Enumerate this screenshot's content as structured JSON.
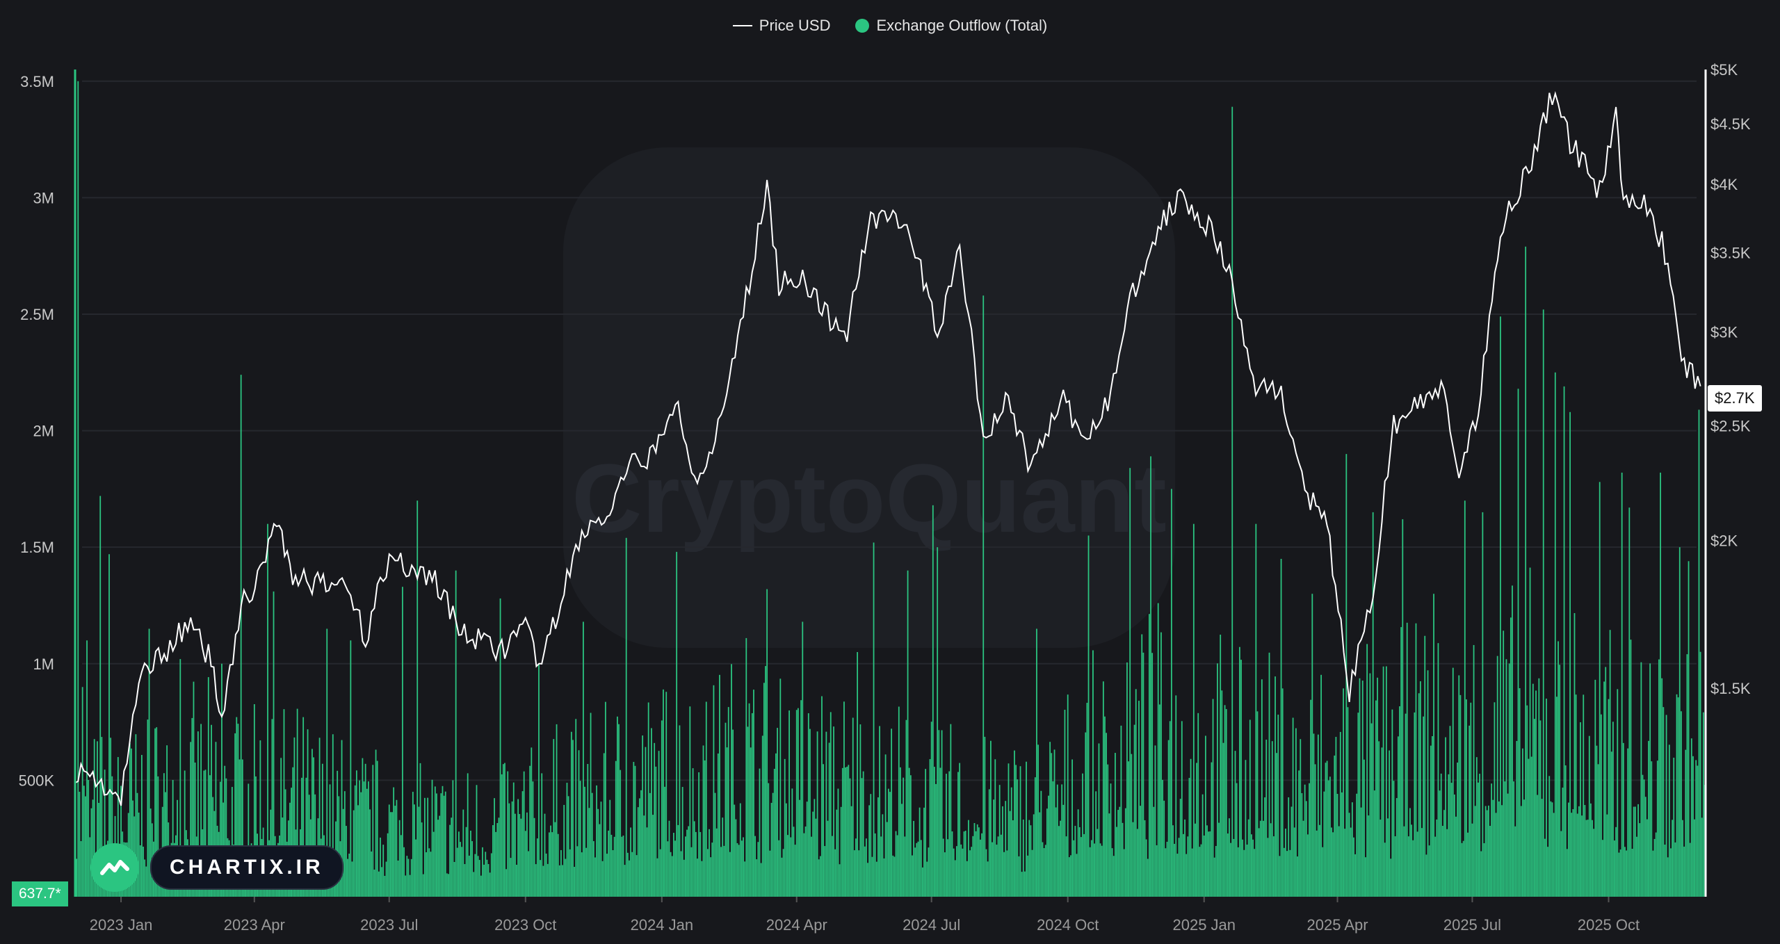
{
  "legend": {
    "price_label": "Price USD",
    "outflow_label": "Exchange Outflow (Total)"
  },
  "colors": {
    "background": "#17181c",
    "outflow": "#2bc581",
    "price": "#ffffff",
    "grid": "#26282e",
    "axis_text": "#c8c8c8",
    "x_axis_text": "#9a9a9a"
  },
  "price_tag": "$2.7K",
  "min_tag": "637.7*",
  "watermark": "CryptoQuant",
  "brand": {
    "name": "CHARTIX.IR",
    "icon": "chartix-logo-icon"
  },
  "chart_data": {
    "type": "bar-line",
    "x_range": [
      "2022-12-01",
      "2025-12-05"
    ],
    "x_ticks": [
      "2023 Jan",
      "2023 Apr",
      "2023 Jul",
      "2023 Oct",
      "2024 Jan",
      "2024 Apr",
      "2024 Jul",
      "2024 Oct",
      "2025 Jan",
      "2025 Apr",
      "2025 Jul",
      "2025 Oct"
    ],
    "x_tick_dates": [
      "2023-01-01",
      "2023-04-01",
      "2023-07-01",
      "2023-10-01",
      "2024-01-01",
      "2024-04-01",
      "2024-07-01",
      "2024-10-01",
      "2025-01-01",
      "2025-04-01",
      "2025-07-01",
      "2025-10-01"
    ],
    "y_left": {
      "label": "",
      "range": [
        0,
        3550000
      ],
      "ticks": [
        500000,
        1000000,
        1500000,
        2000000,
        2500000,
        3000000,
        3500000
      ],
      "tick_labels": [
        "500K",
        "1M",
        "1.5M",
        "2M",
        "2.5M",
        "3M",
        "3.5M"
      ]
    },
    "y_right": {
      "label": "",
      "scale": "log",
      "range": [
        1000,
        5000
      ],
      "ticks": [
        1500,
        2000,
        2500,
        3000,
        3500,
        4000,
        4500,
        5000
      ],
      "tick_labels": [
        "$1.5K",
        "$2K",
        "$2.5K",
        "$3K",
        "$3.5K",
        "$4K",
        "$4.5K",
        "$5K"
      ]
    },
    "series": [
      {
        "name": "Price USD",
        "type": "line",
        "points": [
          [
            "2022-12-01",
            1280
          ],
          [
            "2022-12-15",
            1260
          ],
          [
            "2023-01-01",
            1200
          ],
          [
            "2023-01-15",
            1550
          ],
          [
            "2023-02-01",
            1620
          ],
          [
            "2023-02-15",
            1700
          ],
          [
            "2023-03-01",
            1600
          ],
          [
            "2023-03-10",
            1430
          ],
          [
            "2023-03-25",
            1780
          ],
          [
            "2023-04-05",
            1860
          ],
          [
            "2023-04-16",
            2100
          ],
          [
            "2023-04-25",
            1880
          ],
          [
            "2023-05-10",
            1840
          ],
          [
            "2023-05-25",
            1820
          ],
          [
            "2023-06-01",
            1870
          ],
          [
            "2023-06-15",
            1640
          ],
          [
            "2023-06-25",
            1880
          ],
          [
            "2023-07-05",
            1930
          ],
          [
            "2023-07-20",
            1880
          ],
          [
            "2023-08-01",
            1860
          ],
          [
            "2023-08-17",
            1680
          ],
          [
            "2023-09-01",
            1640
          ],
          [
            "2023-09-15",
            1620
          ],
          [
            "2023-10-01",
            1680
          ],
          [
            "2023-10-12",
            1560
          ],
          [
            "2023-10-25",
            1780
          ],
          [
            "2023-11-10",
            2050
          ],
          [
            "2023-11-25",
            2080
          ],
          [
            "2023-12-10",
            2300
          ],
          [
            "2023-12-28",
            2380
          ],
          [
            "2024-01-12",
            2600
          ],
          [
            "2024-01-23",
            2250
          ],
          [
            "2024-02-10",
            2500
          ],
          [
            "2024-02-25",
            3100
          ],
          [
            "2024-03-12",
            3950
          ],
          [
            "2024-03-20",
            3300
          ],
          [
            "2024-04-05",
            3350
          ],
          [
            "2024-04-20",
            3100
          ],
          [
            "2024-05-05",
            3000
          ],
          [
            "2024-05-21",
            3750
          ],
          [
            "2024-06-05",
            3800
          ],
          [
            "2024-06-20",
            3500
          ],
          [
            "2024-07-05",
            3000
          ],
          [
            "2024-07-20",
            3500
          ],
          [
            "2024-08-05",
            2400
          ],
          [
            "2024-08-20",
            2650
          ],
          [
            "2024-09-06",
            2300
          ],
          [
            "2024-09-28",
            2650
          ],
          [
            "2024-10-10",
            2400
          ],
          [
            "2024-10-30",
            2650
          ],
          [
            "2024-11-12",
            3200
          ],
          [
            "2024-12-01",
            3650
          ],
          [
            "2024-12-16",
            3950
          ],
          [
            "2025-01-06",
            3650
          ],
          [
            "2025-01-20",
            3300
          ],
          [
            "2025-02-03",
            2700
          ],
          [
            "2025-02-20",
            2700
          ],
          [
            "2025-03-10",
            2200
          ],
          [
            "2025-03-25",
            2050
          ],
          [
            "2025-04-09",
            1480
          ],
          [
            "2025-04-25",
            1800
          ],
          [
            "2025-05-09",
            2500
          ],
          [
            "2025-05-25",
            2600
          ],
          [
            "2025-06-10",
            2700
          ],
          [
            "2025-06-22",
            2250
          ],
          [
            "2025-07-05",
            2550
          ],
          [
            "2025-07-20",
            3650
          ],
          [
            "2025-08-10",
            4200
          ],
          [
            "2025-08-24",
            4750
          ],
          [
            "2025-09-05",
            4350
          ],
          [
            "2025-09-25",
            3950
          ],
          [
            "2025-10-06",
            4600
          ],
          [
            "2025-10-11",
            3850
          ],
          [
            "2025-10-25",
            3900
          ],
          [
            "2025-11-10",
            3450
          ],
          [
            "2025-11-21",
            2800
          ],
          [
            "2025-12-02",
            2700
          ]
        ]
      },
      {
        "name": "Exchange Outflow (Total)",
        "type": "bar",
        "frequency": "daily",
        "baseline_profile": [
          [
            "2022-12-01",
            370000
          ],
          [
            "2023-01-01",
            400000
          ],
          [
            "2023-03-01",
            470000
          ],
          [
            "2023-05-01",
            420000
          ],
          [
            "2023-07-01",
            330000
          ],
          [
            "2023-09-01",
            300000
          ],
          [
            "2023-11-01",
            410000
          ],
          [
            "2024-01-01",
            490000
          ],
          [
            "2024-03-01",
            560000
          ],
          [
            "2024-05-01",
            480000
          ],
          [
            "2024-07-01",
            400000
          ],
          [
            "2024-09-01",
            370000
          ],
          [
            "2024-11-01",
            560000
          ],
          [
            "2024-12-01",
            640000
          ],
          [
            "2025-01-01",
            600000
          ],
          [
            "2025-03-01",
            520000
          ],
          [
            "2025-05-01",
            580000
          ],
          [
            "2025-07-01",
            640000
          ],
          [
            "2025-08-15",
            720000
          ],
          [
            "2025-10-01",
            600000
          ],
          [
            "2025-12-05",
            620000
          ]
        ],
        "spikes": [
          [
            "2022-12-03",
            3500000
          ],
          [
            "2022-12-06",
            900000
          ],
          [
            "2022-12-09",
            1100000
          ],
          [
            "2022-12-18",
            1720000
          ],
          [
            "2022-12-24",
            1470000
          ],
          [
            "2023-01-20",
            1150000
          ],
          [
            "2023-02-10",
            1020000
          ],
          [
            "2023-03-10",
            1000000
          ],
          [
            "2023-03-23",
            2240000
          ],
          [
            "2023-04-10",
            1600000
          ],
          [
            "2023-04-14",
            1310000
          ],
          [
            "2023-05-20",
            1150000
          ],
          [
            "2023-06-05",
            1100000
          ],
          [
            "2023-07-10",
            1330000
          ],
          [
            "2023-07-20",
            1700000
          ],
          [
            "2023-08-15",
            1400000
          ],
          [
            "2023-09-14",
            1280000
          ],
          [
            "2023-10-10",
            1000000
          ],
          [
            "2023-11-09",
            1180000
          ],
          [
            "2023-12-08",
            1540000
          ],
          [
            "2024-01-11",
            1480000
          ],
          [
            "2024-02-27",
            1110000
          ],
          [
            "2024-03-12",
            1320000
          ],
          [
            "2024-04-05",
            1180000
          ],
          [
            "2024-05-12",
            1050000
          ],
          [
            "2024-05-23",
            1520000
          ],
          [
            "2024-06-15",
            1400000
          ],
          [
            "2024-07-02",
            1680000
          ],
          [
            "2024-07-05",
            1500000
          ],
          [
            "2024-08-05",
            2580000
          ],
          [
            "2024-09-10",
            1150000
          ],
          [
            "2024-10-15",
            1550000
          ],
          [
            "2024-11-12",
            1840000
          ],
          [
            "2024-11-26",
            1890000
          ],
          [
            "2024-12-10",
            1750000
          ],
          [
            "2024-12-25",
            1600000
          ],
          [
            "2025-01-20",
            3390000
          ],
          [
            "2025-02-05",
            1600000
          ],
          [
            "2025-02-22",
            1450000
          ],
          [
            "2025-03-15",
            1300000
          ],
          [
            "2025-04-07",
            1900000
          ],
          [
            "2025-04-25",
            1650000
          ],
          [
            "2025-05-15",
            1620000
          ],
          [
            "2025-06-05",
            1300000
          ],
          [
            "2025-06-26",
            1700000
          ],
          [
            "2025-07-08",
            1650000
          ],
          [
            "2025-07-20",
            2490000
          ],
          [
            "2025-08-01",
            2180000
          ],
          [
            "2025-08-06",
            2790000
          ],
          [
            "2025-08-18",
            2520000
          ],
          [
            "2025-08-26",
            2250000
          ],
          [
            "2025-09-01",
            2190000
          ],
          [
            "2025-09-05",
            2080000
          ],
          [
            "2025-09-25",
            1780000
          ],
          [
            "2025-10-10",
            1820000
          ],
          [
            "2025-10-15",
            1670000
          ],
          [
            "2025-11-05",
            1820000
          ],
          [
            "2025-11-18",
            1500000
          ],
          [
            "2025-11-24",
            1440000
          ],
          [
            "2025-12-01",
            2090000
          ]
        ]
      }
    ],
    "grid": true,
    "legend_position": "top-center"
  }
}
